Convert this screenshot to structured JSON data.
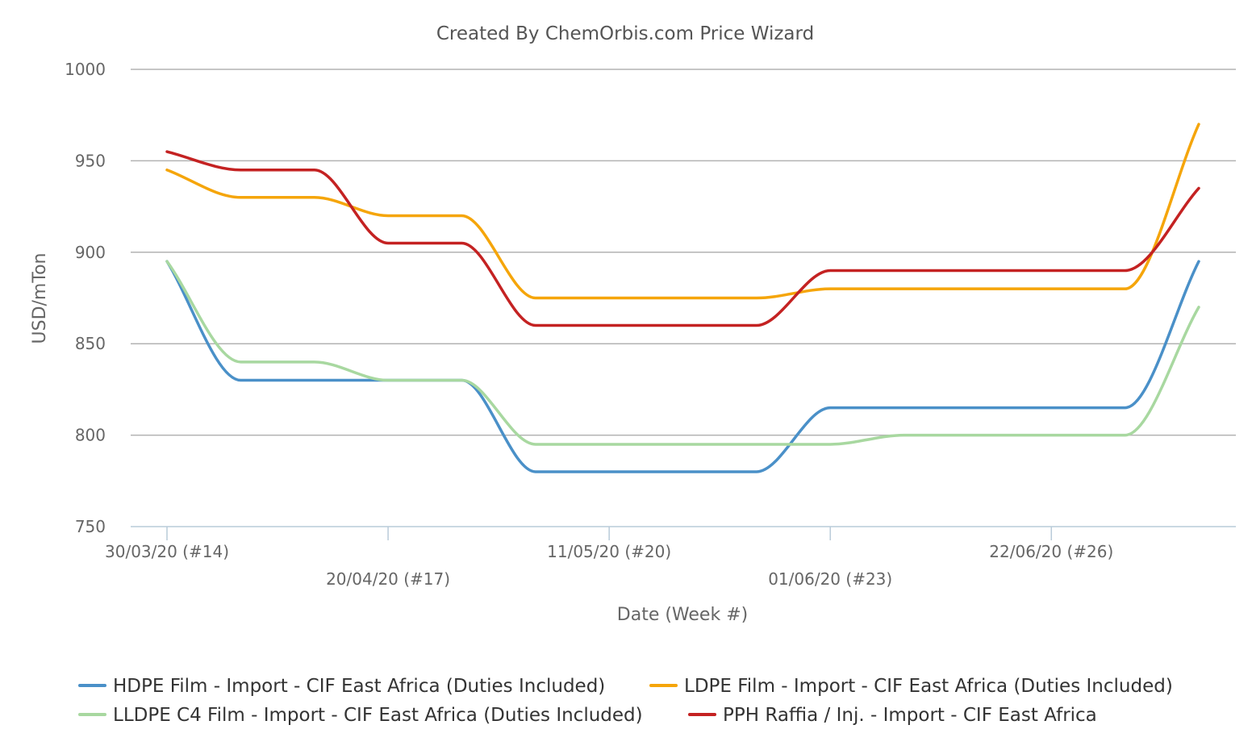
{
  "chart_data": {
    "type": "line",
    "title": "Created By ChemOrbis.com Price Wizard",
    "xlabel": "Date (Week #)",
    "ylabel": "USD/mTon",
    "ylim": [
      750,
      1000
    ],
    "yticks": [
      750,
      800,
      850,
      900,
      950,
      1000
    ],
    "grid": true,
    "legend_position": "bottom",
    "x": [
      "2020-03-30",
      "2020-04-06",
      "2020-04-13",
      "2020-04-20",
      "2020-04-27",
      "2020-05-04",
      "2020-05-11",
      "2020-05-18",
      "2020-05-25",
      "2020-06-01",
      "2020-06-08",
      "2020-06-15",
      "2020-06-22",
      "2020-06-29",
      "2020-07-06"
    ],
    "xtick_labels": [
      {
        "x": "2020-03-30",
        "label": "30/03/20 (#14)"
      },
      {
        "x": "2020-04-20",
        "label": "20/04/20 (#17)"
      },
      {
        "x": "2020-05-11",
        "label": "11/05/20 (#20)"
      },
      {
        "x": "2020-06-01",
        "label": "01/06/20 (#23)"
      },
      {
        "x": "2020-06-22",
        "label": "22/06/20 (#26)"
      }
    ],
    "series": [
      {
        "name": "HDPE Film - Import - CIF East Africa (Duties Included)",
        "color": "#4a90c8",
        "values": [
          895,
          830,
          830,
          830,
          830,
          780,
          780,
          780,
          780,
          815,
          815,
          815,
          815,
          815,
          895
        ]
      },
      {
        "name": "LDPE Film - Import - CIF East Africa (Duties Included)",
        "color": "#f5a50a",
        "values": [
          945,
          930,
          930,
          920,
          920,
          875,
          875,
          875,
          875,
          880,
          880,
          880,
          880,
          880,
          970
        ]
      },
      {
        "name": "LLDPE C4 Film - Import - CIF East Africa (Duties Included)",
        "color": "#a8d8a0",
        "values": [
          895,
          840,
          840,
          830,
          830,
          795,
          795,
          795,
          795,
          795,
          800,
          800,
          800,
          800,
          870
        ]
      },
      {
        "name": "PPH Raffia / Inj. - Import - CIF East Africa",
        "color": "#c42222",
        "values": [
          955,
          945,
          945,
          905,
          905,
          860,
          860,
          860,
          860,
          890,
          890,
          890,
          890,
          890,
          935
        ]
      }
    ]
  }
}
